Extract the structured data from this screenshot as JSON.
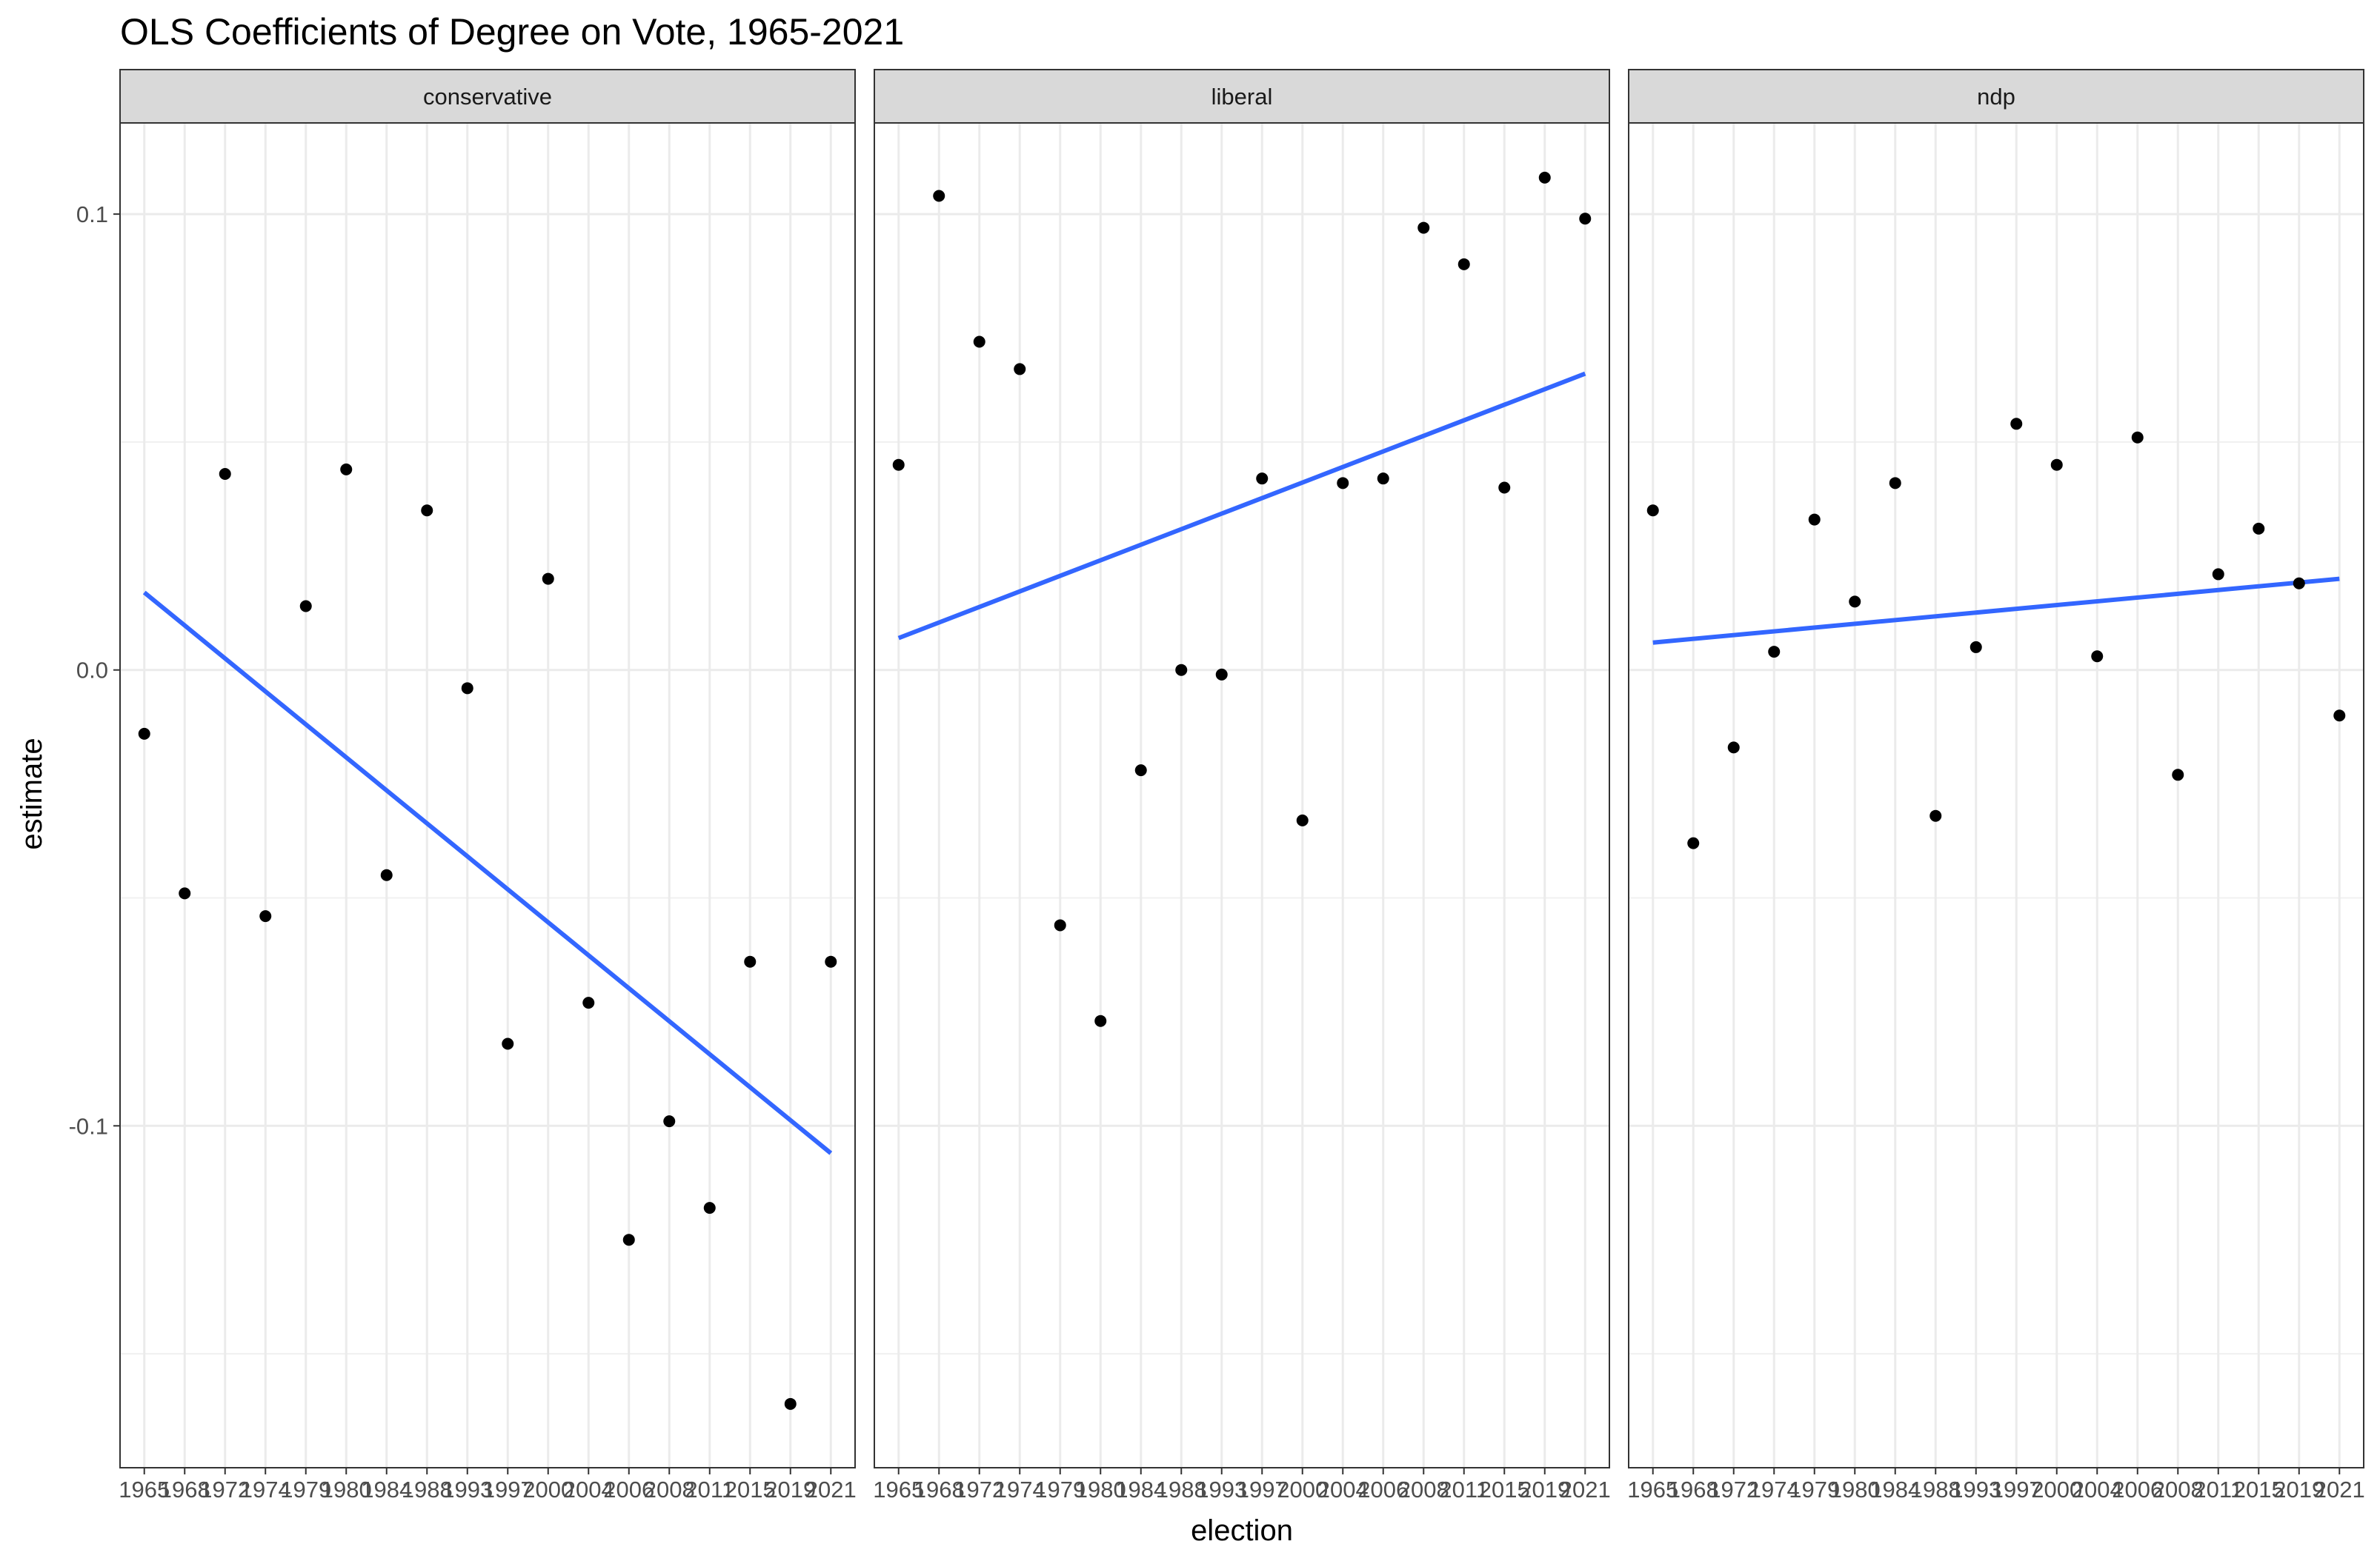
{
  "chart_data": {
    "type": "scatter",
    "title": "OLS Coefficients of Degree on Vote, 1965-2021",
    "xlabel": "election",
    "ylabel": "estimate",
    "ylim": [
      -0.175,
      0.12
    ],
    "y_ticks": [
      {
        "value": 0.1,
        "label": "0.1"
      },
      {
        "value": 0.0,
        "label": "0.0"
      },
      {
        "value": -0.1,
        "label": "-0.1"
      }
    ],
    "y_minor_ticks": [
      0.05,
      -0.05,
      -0.15
    ],
    "categories": [
      "1965",
      "1968",
      "1972",
      "1974",
      "1979",
      "1980",
      "1984",
      "1988",
      "1993",
      "1997",
      "2000",
      "2004",
      "2006",
      "2008",
      "2011",
      "2015",
      "2019",
      "2021"
    ],
    "grid": true,
    "point_color": "#000000",
    "trend_color": "#3366FF",
    "panels": [
      {
        "strip": "conservative",
        "values": [
          -0.014,
          -0.049,
          0.043,
          -0.054,
          0.014,
          0.044,
          -0.045,
          0.035,
          -0.004,
          -0.082,
          0.02,
          -0.073,
          -0.125,
          -0.099,
          -0.118,
          -0.064,
          -0.161,
          -0.064
        ],
        "trend": {
          "start": 0.017,
          "end": -0.106
        }
      },
      {
        "strip": "liberal",
        "values": [
          0.045,
          0.104,
          0.072,
          0.066,
          -0.056,
          -0.077,
          -0.022,
          0.0,
          -0.001,
          0.042,
          -0.033,
          0.041,
          0.042,
          0.097,
          0.089,
          0.04,
          0.108,
          0.099
        ],
        "trend": {
          "start": 0.007,
          "end": 0.065
        }
      },
      {
        "strip": "ndp",
        "values": [
          0.035,
          -0.038,
          -0.017,
          0.004,
          0.033,
          0.015,
          0.041,
          -0.032,
          0.005,
          0.054,
          0.045,
          0.003,
          0.051,
          -0.023,
          0.021,
          0.031,
          0.019,
          -0.01
        ],
        "trend": {
          "start": 0.006,
          "end": 0.02
        }
      }
    ]
  }
}
